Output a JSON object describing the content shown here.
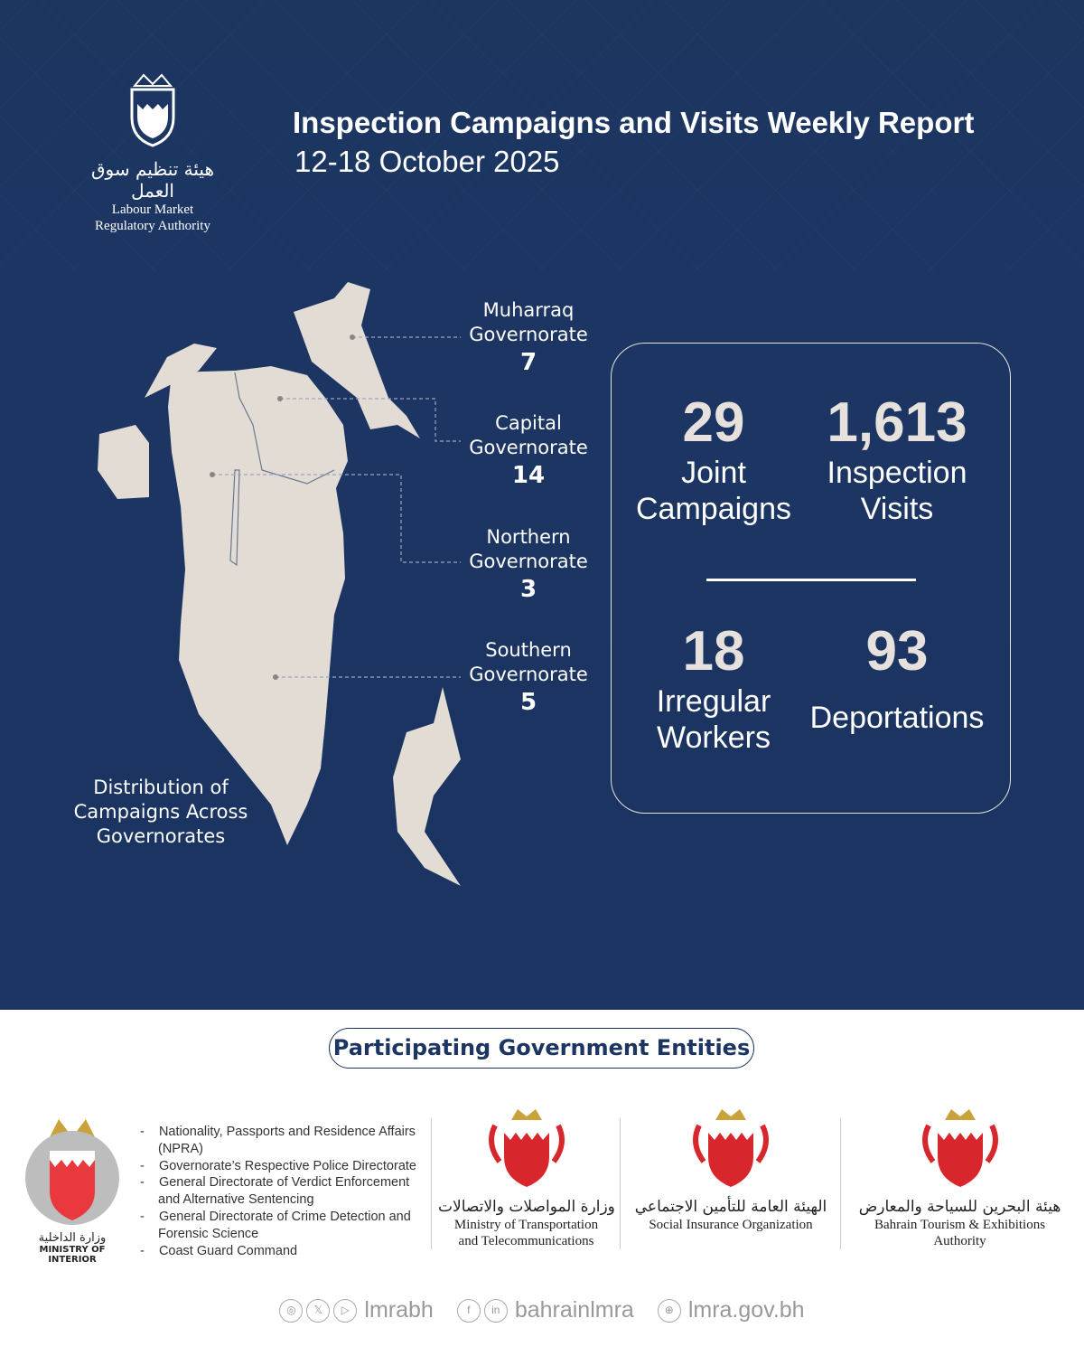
{
  "header": {
    "org_name_ar": "هيئة تنظيم سوق العمل",
    "org_name_en_1": "Labour Market",
    "org_name_en_2": "Regulatory Authority",
    "title": "Inspection Campaigns and Visits Weekly Report",
    "date_range": "12-18 October 2025"
  },
  "map": {
    "governorates": [
      {
        "name_1": "Muharraq",
        "name_2": "Governorate",
        "count": "7"
      },
      {
        "name_1": "Capital",
        "name_2": "Governorate",
        "count": "14"
      },
      {
        "name_1": "Northern",
        "name_2": "Governorate",
        "count": "3"
      },
      {
        "name_1": "Southern",
        "name_2": "Governorate",
        "count": "5"
      }
    ],
    "caption_1": "Distribution of",
    "caption_2": "Campaigns Across",
    "caption_3": "Governorates",
    "land_color": "#e2dcd5"
  },
  "stats": [
    {
      "value": "29",
      "label_1": "Joint",
      "label_2": "Campaigns"
    },
    {
      "value": "1,613",
      "label_1": "Inspection",
      "label_2": "Visits"
    },
    {
      "value": "18",
      "label_1": "Irregular",
      "label_2": "Workers"
    },
    {
      "value": "93",
      "label_1": "Deportations",
      "label_2": ""
    }
  ],
  "entities": {
    "heading": "Participating Government Entities",
    "moi": {
      "name_ar": "وزارة الداخلية",
      "name_en": "MINISTRY OF INTERIOR",
      "items": [
        "Nationality, Passports and Residence Affairs (NPRA)",
        "Governorate’s Respective Police Directorate",
        "General Directorate of Verdict Enforcement and Alternative Sentencing",
        "General Directorate of Crime Detection and Forensic Science",
        "Coast Guard Command"
      ]
    },
    "others": [
      {
        "name_ar": "وزارة المواصلات والاتصالات",
        "name_en_1": "Ministry of Transportation",
        "name_en_2": "and Telecommunications"
      },
      {
        "name_ar": "الهيئة العامة للتأمين الاجتماعي",
        "name_en_1": "Social Insurance Organization",
        "name_en_2": ""
      },
      {
        "name_ar": "هيئة البحرين للسياحة والمعارض",
        "name_en_1": "Bahrain Tourism & Exhibitions",
        "name_en_2": "Authority"
      }
    ]
  },
  "footer": {
    "handle_1": "lmrabh",
    "handle_2": "bahrainlmra",
    "website": "lmra.gov.bh",
    "icons": [
      "instagram-icon",
      "x-icon",
      "youtube-icon",
      "facebook-icon",
      "linkedin-icon",
      "globe-icon"
    ]
  },
  "colors": {
    "navy": "#1c3563",
    "accent_red": "#d7262c",
    "gold": "#c9a33a"
  }
}
